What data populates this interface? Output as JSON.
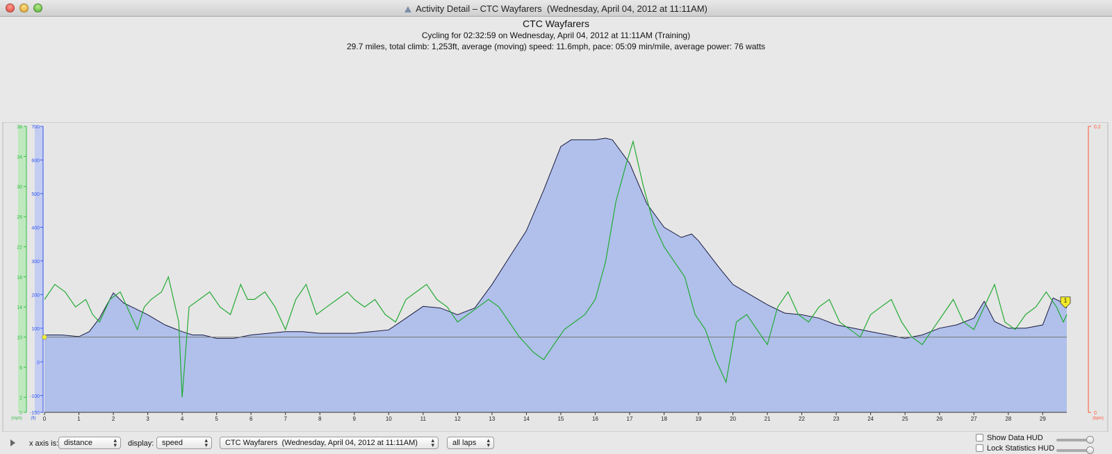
{
  "window": {
    "title": "Activity Detail – CTC Wayfarers  (Wednesday, April 04, 2012 at 11:11AM)"
  },
  "header": {
    "title": "CTC Wayfarers",
    "subtitle1": "Cycling for 02:32:59 on Wednesday, April 04, 2012 at 11:11AM (Training)",
    "subtitle2": "29.7 miles, total climb: 1,253ft, average (moving) speed: 11.6mph, pace: 05:09 min/mile, average power: 76 watts"
  },
  "colors": {
    "speed": "#22aa33",
    "elevation_fill": "#b0c0ea",
    "elevation_line": "#1a1a40",
    "hr_axis": "#ff5533",
    "speed_axis": "#33bb44",
    "elev_axis": "#3355ee"
  },
  "chart_data": {
    "type": "area",
    "x_axis": {
      "label": "",
      "min": 0,
      "max": 29.7,
      "ticks": [
        "0",
        "1",
        "2",
        "3",
        "4",
        "5",
        "6",
        "7",
        "8",
        "9",
        "10",
        "11",
        "12",
        "13",
        "14",
        "15",
        "16",
        "17",
        "18",
        "19",
        "20",
        "21",
        "22",
        "23",
        "24",
        "25",
        "26",
        "27",
        "28",
        "29"
      ]
    },
    "y_axes": [
      {
        "id": "speed",
        "unit": "(mph)",
        "min": 0,
        "max": 38,
        "ticks": [
          "0",
          "2",
          "6",
          "10",
          "14",
          "18",
          "22",
          "26",
          "30",
          "34",
          "38"
        ]
      },
      {
        "id": "elevation",
        "unit": "(ft)",
        "min": -150,
        "max": 700,
        "ticks": [
          "-150",
          "-100",
          "0",
          "100",
          "200",
          "300",
          "400",
          "500",
          "600",
          "700"
        ]
      },
      {
        "id": "heart_rate",
        "unit": "(bpm)",
        "min": 0,
        "max": 0.2,
        "ticks": [
          "0",
          "0.2"
        ]
      }
    ],
    "reference_line": {
      "speed": 10
    },
    "lap_marker": "1",
    "series": [
      {
        "name": "elevation",
        "x": [
          0,
          0.5,
          1,
          1.3,
          1.6,
          2,
          2.3,
          2.6,
          3,
          3.5,
          4,
          4.3,
          4.6,
          5,
          5.5,
          6,
          6.5,
          7,
          7.5,
          8,
          8.5,
          9,
          9.5,
          10,
          10.5,
          11,
          11.5,
          12,
          12.5,
          13,
          13.5,
          14,
          14.5,
          15,
          15.3,
          15.6,
          16,
          16.3,
          16.5,
          17,
          17.5,
          18,
          18.5,
          18.8,
          19,
          19.3,
          19.6,
          20,
          20.5,
          21,
          21.5,
          22,
          22.5,
          23,
          23.5,
          24,
          24.5,
          25,
          25.5,
          26,
          26.5,
          27,
          27.3,
          27.6,
          28,
          28.5,
          29,
          29.3,
          29.6,
          29.7
        ],
        "y": [
          80,
          80,
          75,
          90,
          130,
          205,
          175,
          160,
          140,
          110,
          90,
          80,
          80,
          70,
          70,
          80,
          85,
          90,
          90,
          85,
          85,
          85,
          90,
          95,
          130,
          165,
          160,
          140,
          160,
          230,
          310,
          390,
          510,
          640,
          660,
          660,
          660,
          665,
          660,
          590,
          470,
          400,
          370,
          380,
          360,
          320,
          280,
          230,
          200,
          170,
          145,
          140,
          130,
          110,
          100,
          90,
          80,
          70,
          80,
          100,
          110,
          130,
          180,
          120,
          100,
          100,
          110,
          190,
          175,
          160
        ]
      },
      {
        "name": "speed",
        "x": [
          0,
          0.3,
          0.6,
          0.9,
          1.2,
          1.4,
          1.6,
          1.9,
          2.2,
          2.5,
          2.7,
          2.9,
          3.1,
          3.4,
          3.6,
          3.9,
          4,
          4.2,
          4.5,
          4.8,
          5.1,
          5.4,
          5.7,
          5.9,
          6.1,
          6.4,
          6.7,
          7,
          7.3,
          7.6,
          7.9,
          8.2,
          8.5,
          8.8,
          9,
          9.3,
          9.6,
          9.9,
          10.2,
          10.5,
          10.8,
          11.1,
          11.4,
          11.7,
          12,
          12.3,
          12.6,
          12.9,
          13.2,
          13.5,
          13.8,
          14,
          14.2,
          14.5,
          14.8,
          15.1,
          15.4,
          15.7,
          16,
          16.3,
          16.6,
          16.9,
          17.1,
          17.4,
          17.7,
          18,
          18.3,
          18.6,
          18.9,
          19.2,
          19.5,
          19.8,
          20.1,
          20.4,
          20.7,
          21,
          21.3,
          21.6,
          21.9,
          22.2,
          22.5,
          22.8,
          23.1,
          23.4,
          23.7,
          24,
          24.3,
          24.6,
          24.9,
          25.2,
          25.5,
          25.8,
          26.1,
          26.4,
          26.7,
          27,
          27.3,
          27.6,
          27.9,
          28.2,
          28.5,
          28.8,
          29.1,
          29.4,
          29.6,
          29.7
        ],
        "y": [
          15,
          17,
          16,
          14,
          15,
          13,
          12,
          15,
          16,
          13,
          11,
          14,
          15,
          16,
          18,
          12,
          2,
          14,
          15,
          16,
          14,
          13,
          17,
          15,
          15,
          16,
          14,
          11,
          15,
          17,
          13,
          14,
          15,
          16,
          15,
          14,
          15,
          13,
          12,
          15,
          16,
          17,
          15,
          14,
          12,
          13,
          14,
          15,
          14,
          12,
          10,
          9,
          8,
          7,
          9,
          11,
          12,
          13,
          15,
          20,
          28,
          33,
          36,
          30,
          25,
          22,
          20,
          18,
          13,
          11,
          7,
          4,
          12,
          13,
          11,
          9,
          14,
          16,
          13,
          12,
          14,
          15,
          12,
          11,
          10,
          13,
          14,
          15,
          12,
          10,
          9,
          11,
          13,
          15,
          12,
          11,
          14,
          17,
          12,
          11,
          13,
          14,
          16,
          14,
          12,
          13
        ]
      }
    ]
  },
  "toolbar": {
    "xaxis_label": "x axis is:",
    "xaxis_value": "distance",
    "display_label": "display:",
    "display_value": "speed",
    "activity_value": "CTC Wayfarers  (Wednesday, April 04, 2012 at 11:11AM)",
    "laps_value": "all laps",
    "show_data_hud": "Show Data HUD",
    "lock_stats_hud": "Lock Statistics HUD"
  }
}
